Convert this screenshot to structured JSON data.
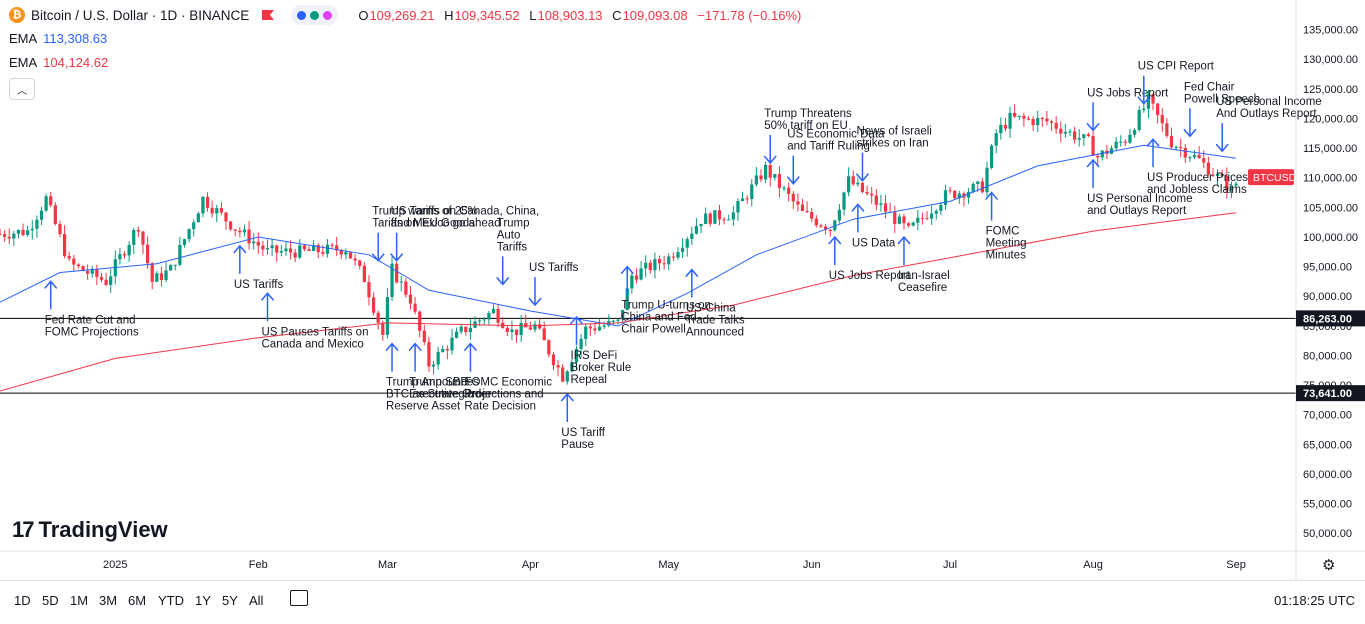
{
  "header": {
    "symbol_line": "Bitcoin / U.S. Dollar · 1D · BINANCE",
    "ohlc": [
      {
        "k": "O",
        "v": "109,269.21"
      },
      {
        "k": "H",
        "v": "109,345.52"
      },
      {
        "k": "L",
        "v": "108,903.13"
      },
      {
        "k": "C",
        "v": "109,093.08"
      }
    ],
    "change": "−171.78 (−0.16%)"
  },
  "ema": [
    {
      "label": "EMA",
      "value": "113,308.63",
      "color": "#2962ff"
    },
    {
      "label": "EMA",
      "value": "104,124.62",
      "color": "#f23645"
    }
  ],
  "logo_text": "TradingView",
  "timeframes": [
    "1D",
    "5D",
    "1M",
    "3M",
    "6M",
    "YTD",
    "1Y",
    "5Y",
    "All"
  ],
  "clock": "01:18:25 UTC",
  "colors": {
    "up": "#089981",
    "down": "#f23645",
    "ema_fast": "#2962ff",
    "ema_slow": "#f23645",
    "annotation": "#2962ff",
    "axis": "#131722"
  },
  "chart_data": {
    "type": "candlestick",
    "instrument": "BTCUSD",
    "interval": "1D",
    "ylim": [
      47000,
      140000
    ],
    "y_ticks": [
      50000,
      55000,
      60000,
      65000,
      70000,
      75000,
      80000,
      85000,
      90000,
      95000,
      100000,
      105000,
      110000,
      115000,
      120000,
      125000,
      130000,
      135000
    ],
    "y_tick_labels": [
      "50,000.00",
      "55,000.00",
      "60,000.00",
      "65,000.00",
      "70,000.00",
      "75,000.00",
      "80,000.00",
      "85,000.00",
      "90,000.00",
      "95,000.00",
      "100,000.00",
      "105,000.00",
      "110,000.00",
      "115,000.00",
      "120,000.00",
      "125,000.00",
      "130,000.00",
      "135,000.00"
    ],
    "x_range": [
      "2024-12-07",
      "2025-09-14"
    ],
    "x_ticks": [
      {
        "date": "2025-01-01",
        "label": "2025"
      },
      {
        "date": "2025-02-01",
        "label": "Feb"
      },
      {
        "date": "2025-03-01",
        "label": "Mar"
      },
      {
        "date": "2025-04-01",
        "label": "Apr"
      },
      {
        "date": "2025-05-01",
        "label": "May"
      },
      {
        "date": "2025-06-01",
        "label": "Jun"
      },
      {
        "date": "2025-07-01",
        "label": "Jul"
      },
      {
        "date": "2025-08-01",
        "label": "Aug"
      },
      {
        "date": "2025-09-01",
        "label": "Sep"
      }
    ],
    "close_anchors": [
      [
        "2024-12-07",
        100500
      ],
      [
        "2024-12-13",
        101000
      ],
      [
        "2024-12-17",
        106500
      ],
      [
        "2024-12-22",
        95500
      ],
      [
        "2024-12-30",
        92500
      ],
      [
        "2025-01-06",
        102000
      ],
      [
        "2025-01-09",
        92500
      ],
      [
        "2025-01-13",
        94500
      ],
      [
        "2025-01-20",
        106500
      ],
      [
        "2025-01-27",
        101500
      ],
      [
        "2025-02-03",
        97500
      ],
      [
        "2025-02-10",
        97500
      ],
      [
        "2025-02-20",
        98000
      ],
      [
        "2025-02-24",
        93000
      ],
      [
        "2025-02-28",
        83500
      ],
      [
        "2025-03-02",
        94500
      ],
      [
        "2025-03-06",
        89500
      ],
      [
        "2025-03-10",
        78500
      ],
      [
        "2025-03-17",
        84000
      ],
      [
        "2025-03-24",
        87500
      ],
      [
        "2025-03-28",
        84000
      ],
      [
        "2025-04-02",
        85000
      ],
      [
        "2025-04-08",
        76500
      ],
      [
        "2025-04-13",
        84500
      ],
      [
        "2025-04-20",
        85500
      ],
      [
        "2025-04-23",
        93500
      ],
      [
        "2025-05-01",
        96500
      ],
      [
        "2025-05-08",
        103000
      ],
      [
        "2025-05-15",
        104000
      ],
      [
        "2025-05-22",
        111500
      ],
      [
        "2025-05-30",
        104000
      ],
      [
        "2025-06-05",
        101500
      ],
      [
        "2025-06-09",
        109500
      ],
      [
        "2025-06-17",
        104500
      ],
      [
        "2025-06-22",
        101000
      ],
      [
        "2025-06-30",
        107000
      ],
      [
        "2025-07-08",
        108500
      ],
      [
        "2025-07-11",
        117500
      ],
      [
        "2025-07-14",
        120000
      ],
      [
        "2025-07-22",
        119500
      ],
      [
        "2025-07-31",
        116000
      ],
      [
        "2025-08-02",
        113500
      ],
      [
        "2025-08-08",
        116500
      ],
      [
        "2025-08-13",
        123000
      ],
      [
        "2025-08-18",
        116000
      ],
      [
        "2025-08-24",
        113000
      ],
      [
        "2025-08-31",
        108000
      ],
      [
        "2025-09-01",
        109100
      ]
    ],
    "series": [
      {
        "name": "EMA",
        "value_label": "113,308.63",
        "points": [
          [
            "2024-12-07",
            89000
          ],
          [
            "2024-12-20",
            94000
          ],
          [
            "2025-01-10",
            95500
          ],
          [
            "2025-02-01",
            100000
          ],
          [
            "2025-02-25",
            97000
          ],
          [
            "2025-03-10",
            91000
          ],
          [
            "2025-04-01",
            87500
          ],
          [
            "2025-04-20",
            85000
          ],
          [
            "2025-05-05",
            90500
          ],
          [
            "2025-05-20",
            97000
          ],
          [
            "2025-06-10",
            103000
          ],
          [
            "2025-07-01",
            106000
          ],
          [
            "2025-07-20",
            112000
          ],
          [
            "2025-08-12",
            115500
          ],
          [
            "2025-09-01",
            113300
          ]
        ]
      },
      {
        "name": "EMA",
        "value_label": "104,124.62",
        "points": [
          [
            "2024-12-07",
            74000
          ],
          [
            "2025-01-01",
            79500
          ],
          [
            "2025-02-01",
            83000
          ],
          [
            "2025-03-01",
            85500
          ],
          [
            "2025-04-01",
            85000
          ],
          [
            "2025-04-20",
            85500
          ],
          [
            "2025-05-15",
            88500
          ],
          [
            "2025-06-10",
            93500
          ],
          [
            "2025-07-01",
            96500
          ],
          [
            "2025-08-01",
            101000
          ],
          [
            "2025-09-01",
            104100
          ]
        ]
      }
    ],
    "horizontal_lines": [
      {
        "value": 86263,
        "label": "86,263.00"
      },
      {
        "value": 73641,
        "label": "73,641.00"
      }
    ],
    "last_price_tag": "BTCUSD",
    "annotations": [
      {
        "text": [
          "Fed Rate Cut and",
          "FOMC Projections"
        ],
        "dir": "up",
        "date": "2024-12-18",
        "price": 92500
      },
      {
        "text": [
          "US Tariffs"
        ],
        "dir": "up",
        "date": "2025-01-28",
        "price": 98500
      },
      {
        "text": [
          "US Pauses Tariffs on",
          "Canada and Mexico"
        ],
        "dir": "up",
        "date": "2025-02-03",
        "price": 90500
      },
      {
        "text": [
          "Trump warns of 25%",
          "Tariffs on EU Goods"
        ],
        "dir": "down",
        "date": "2025-02-27",
        "price": 96000
      },
      {
        "text": [
          "US Tariffs on Canada, China,",
          "and Mexico go ahead"
        ],
        "dir": "down",
        "date": "2025-03-03",
        "price": 96000
      },
      {
        "text": [
          "Trump SBR",
          "Executive Order"
        ],
        "dir": "up",
        "date": "2025-03-07",
        "price": 82000
      },
      {
        "text": [
          "Trump Announces",
          "BTC as Strategic",
          "Reserve Asset"
        ],
        "dir": "up",
        "date": "2025-03-02",
        "price": 82000
      },
      {
        "text": [
          "FOMC Economic",
          "Projections and",
          "Rate Decision"
        ],
        "dir": "up",
        "date": "2025-03-19",
        "price": 82000
      },
      {
        "text": [
          "Trump",
          "Auto",
          "Tariffs"
        ],
        "dir": "down",
        "date": "2025-03-26",
        "price": 92000
      },
      {
        "text": [
          "US Tariffs"
        ],
        "dir": "down",
        "date": "2025-04-02",
        "price": 88500
      },
      {
        "text": [
          "US Tariff",
          "Pause"
        ],
        "dir": "up",
        "date": "2025-04-09",
        "price": 73500
      },
      {
        "text": [
          "IRS DeFi",
          "Broker Rule",
          "Repeal"
        ],
        "dir": "up",
        "date": "2025-04-11",
        "price": 86500
      },
      {
        "text": [
          "Trump U-turns on",
          "China and Fed",
          "Chair Powell"
        ],
        "dir": "up",
        "date": "2025-04-22",
        "price": 95000
      },
      {
        "text": [
          "US-China",
          "Trade Talks",
          "Announced"
        ],
        "dir": "up",
        "date": "2025-05-06",
        "price": 94500
      },
      {
        "text": [
          "Trump Threatens",
          "50% tariff on EU"
        ],
        "dir": "down",
        "date": "2025-05-23",
        "price": 112500
      },
      {
        "text": [
          "US Economic Data",
          "and Tariff Ruling"
        ],
        "dir": "down",
        "date": "2025-05-28",
        "price": 109000
      },
      {
        "text": [
          "US Jobs Report"
        ],
        "dir": "up",
        "date": "2025-06-06",
        "price": 100000
      },
      {
        "text": [
          "US Data"
        ],
        "dir": "up",
        "date": "2025-06-11",
        "price": 105500
      },
      {
        "text": [
          "News of Israeli",
          "strikes on Iran"
        ],
        "dir": "down",
        "date": "2025-06-12",
        "price": 109500
      },
      {
        "text": [
          "Iran-Israel",
          "Ceasefire"
        ],
        "dir": "up",
        "date": "2025-06-21",
        "price": 100000
      },
      {
        "text": [
          "FOMC",
          "Meeting",
          "Minutes"
        ],
        "dir": "up",
        "date": "2025-07-10",
        "price": 107500
      },
      {
        "text": [
          "US Jobs Report"
        ],
        "dir": "down",
        "date": "2025-08-01",
        "price": 118000
      },
      {
        "text": [
          "US CPI Report"
        ],
        "dir": "down",
        "date": "2025-08-12",
        "price": 122500
      },
      {
        "text": [
          "Fed Chair",
          "Powell Speech"
        ],
        "dir": "down",
        "date": "2025-08-22",
        "price": 117000
      },
      {
        "text": [
          "US Personal Income",
          "And Outlays Report"
        ],
        "dir": "down",
        "date": "2025-08-29",
        "price": 114500
      },
      {
        "text": [
          "US Producer Prices",
          "and Jobless Claims"
        ],
        "dir": "up",
        "date": "2025-08-14",
        "price": 116500
      },
      {
        "text": [
          "US Personal Income",
          "and Outlays Report"
        ],
        "dir": "up",
        "date": "2025-08-01",
        "price": 113000
      }
    ]
  }
}
